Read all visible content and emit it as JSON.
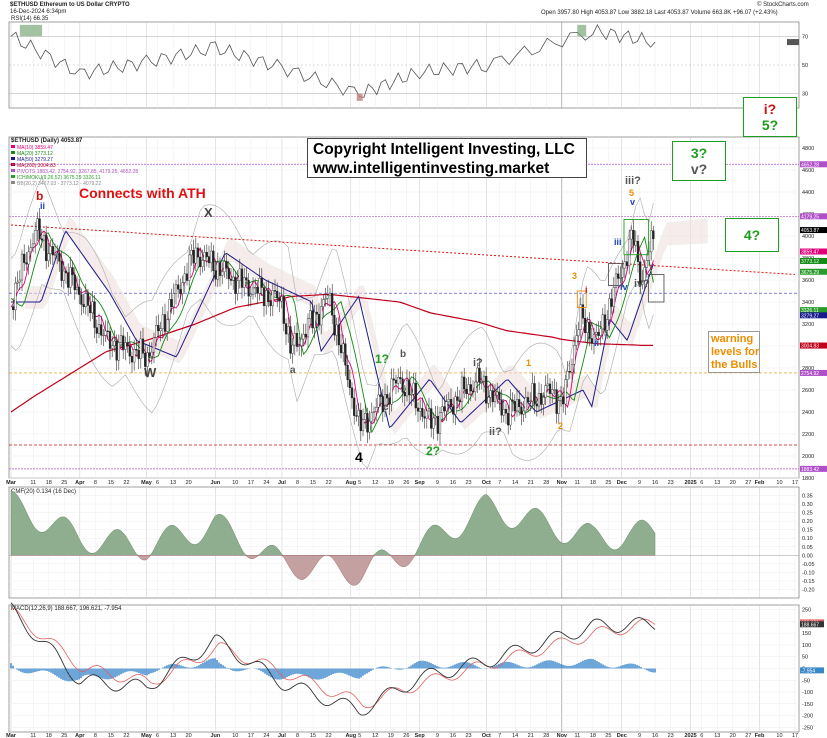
{
  "header": {
    "symbol_line": "$ETHUSD Ethereum to US Dollar CRYPTO",
    "date_line": "16-Dec-2024 6:34pm",
    "ohlc": {
      "open_label": "Open",
      "open": "3957.80",
      "high_label": "High",
      "high": "4053.87",
      "low_label": "Low",
      "low": "3882.18",
      "last_label": "Last",
      "last": "4053.87",
      "volume_label": "Volume",
      "volume": "663.8K",
      "change": "+96.07 (+2.43%)"
    },
    "credit": "© StockCharts.com"
  },
  "copyright": {
    "line1": "Copyright Intelligent Investing, LLC",
    "line2": "www.intelligentinvesting.market"
  },
  "panels": {
    "rsi_label": "RSI(14) 66.35",
    "price_label": "$ETHUSD (Daily) 4053.87",
    "legend": [
      {
        "text": "MA(10) 3859.47",
        "color": "#e0007a"
      },
      {
        "text": "MA(20) 3773.12",
        "color": "#138a13"
      },
      {
        "text": "MA(50) 3279.27",
        "color": "#1a1a8c"
      },
      {
        "text": "MA(200) 3004.83",
        "color": "#c0001a"
      },
      {
        "text": "PIVOTS 1883.42, 2754.92, 3267.85, 4179.25, 4652.28",
        "color": "#b050c8"
      },
      {
        "text": "ICHIMOKU(9,26,52) 3675.29 3326.11",
        "color": "#2a9a2a"
      },
      {
        "text": "BB(20,2) 3467.03 - 3773.12 - 4079.22",
        "color": "#888888"
      }
    ],
    "cmf_label": "CMF(20) 0.134 (16 Dec)",
    "macd_label": "MACD(12,26,9) 188.667, 196.621, -7.954"
  },
  "annotations": {
    "ath": "Connects with ATH",
    "warning_line1": "warning",
    "warning_line2": "levels for",
    "warning_line3": "the Bulls",
    "big_four": "4",
    "w": "W",
    "x": "X",
    "b_top": "b",
    "ii_top": "ii",
    "a1": "a",
    "b1": "b",
    "c1": "c",
    "one_q": "1?",
    "two_q": "2?",
    "i_q": "i?",
    "ii_q": "ii?",
    "iii_q": "iii?",
    "iv_q": "iv?",
    "v_top": "v",
    "five_top": "5",
    "one": "1",
    "two": "2",
    "three": "3",
    "iii": "iii",
    "iv": "iv",
    "v": "v",
    "i": "i",
    "ii": "ii"
  },
  "target_boxes": [
    {
      "l1": "i?",
      "l2": "5?",
      "c1": "#d01010",
      "c2": "#1e9e1e"
    },
    {
      "l1": "3?",
      "l2": "v?",
      "c1": "#1e9e1e",
      "c2": "#555555"
    },
    {
      "l1": "4?",
      "l2": "",
      "c1": "#1e9e1e",
      "c2": "#1e9e1e"
    }
  ],
  "axis": {
    "x_ticks": [
      "Mar",
      "11",
      "18",
      "25",
      "Apr",
      "8",
      "15",
      "22",
      "May",
      "6",
      "13",
      "20",
      "Jun",
      "10",
      "17",
      "24",
      "Jul",
      "8",
      "15",
      "22",
      "Aug",
      "5",
      "12",
      "19",
      "26",
      "Sep",
      "9",
      "16",
      "23",
      "Oct",
      "7",
      "14",
      "21",
      "28",
      "Nov",
      "11",
      "18",
      "25",
      "Dec",
      "9",
      "16",
      "23",
      "2025",
      "6",
      "13",
      "20",
      "27",
      "Feb",
      "10",
      "17"
    ],
    "price_ticks": [
      "4800",
      "4600",
      "4400",
      "4200",
      "4000",
      "3800",
      "3600",
      "3400",
      "3200",
      "3000",
      "2800",
      "2600",
      "2400",
      "2200",
      "2000",
      "1800"
    ],
    "rsi_ticks": [
      "70",
      "50",
      "30"
    ],
    "cmf_ticks": [
      "0.35",
      "0.30",
      "0.25",
      "0.20",
      "0.15",
      "0.10",
      "0.05",
      "0.00",
      "-0.05",
      "-0.10",
      "-0.15",
      "-0.20"
    ],
    "macd_ticks": [
      "250",
      "200",
      "150",
      "100",
      "50",
      "0",
      "-50",
      "-100",
      "-150",
      "-200",
      "-250"
    ],
    "price_tags": [
      {
        "text": "4652.28",
        "color": "#b050c8",
        "y": 4652
      },
      {
        "text": "4179.25",
        "color": "#b050c8",
        "y": 4179
      },
      {
        "text": "4053.87",
        "color": "#000000",
        "y": 4054
      },
      {
        "text": "3859.47",
        "color": "#e0007a",
        "y": 3859
      },
      {
        "text": "3773.12",
        "color": "#138a13",
        "y": 3773
      },
      {
        "text": "3675.29",
        "color": "#2a9a2a",
        "y": 3675
      },
      {
        "text": "3326.11",
        "color": "#2a9a2a",
        "y": 3326
      },
      {
        "text": "3279.27",
        "color": "#1a1a8c",
        "y": 3279
      },
      {
        "text": "3004.83",
        "color": "#c0001a",
        "y": 3004
      },
      {
        "text": "2754.92",
        "color": "#b050c8",
        "y": 2755
      },
      {
        "text": "1883.42",
        "color": "#b050c8",
        "y": 1883
      }
    ],
    "macd_tags": [
      {
        "text": "196.621",
        "color": "#e06060",
        "y": 196
      },
      {
        "text": "188.667",
        "color": "#333333",
        "y": 188
      },
      {
        "text": "-7.954",
        "color": "#3a88c8",
        "y": -8
      }
    ]
  },
  "chart_data": [
    {
      "type": "line",
      "title": "RSI(14)",
      "x": [
        "Mar",
        "Apr",
        "May",
        "Jun",
        "Jul",
        "Aug",
        "Sep",
        "Oct",
        "Nov",
        "Dec"
      ],
      "series": [
        {
          "name": "RSI(14)",
          "values": [
            70,
            44,
            52,
            62,
            48,
            30,
            45,
            50,
            74,
            66
          ]
        }
      ],
      "ylim": [
        20,
        80
      ]
    },
    {
      "type": "line",
      "title": "$ETHUSD (Daily)",
      "ylabel": "",
      "ylim": [
        1800,
        4900
      ],
      "x_dates": [
        "2024-03-01",
        "2024-03-12",
        "2024-04-01",
        "2024-04-13",
        "2024-05-01",
        "2024-05-23",
        "2024-06-10",
        "2024-07-01",
        "2024-07-05",
        "2024-07-22",
        "2024-08-05",
        "2024-08-23",
        "2024-09-06",
        "2024-09-27",
        "2024-10-10",
        "2024-10-31",
        "2024-11-04",
        "2024-11-12",
        "2024-11-20",
        "2024-12-06",
        "2024-12-10",
        "2024-12-16"
      ],
      "series": [
        {
          "name": "$ETHUSD",
          "values": [
            3400,
            4050,
            3480,
            3050,
            2900,
            3850,
            3600,
            3400,
            2950,
            3450,
            2250,
            2700,
            2300,
            2700,
            2400,
            2600,
            2450,
            3250,
            3050,
            4000,
            3600,
            4054
          ]
        },
        {
          "name": "MA(200)",
          "values": [
            2400,
            2550,
            2800,
            2950,
            3050,
            3200,
            3350,
            3430,
            3450,
            3470,
            3440,
            3400,
            3300,
            3220,
            3140,
            3080,
            3060,
            3040,
            3020,
            3010,
            3005,
            3005
          ]
        }
      ],
      "lines": [
        {
          "name": "ATH trendline",
          "from": [
            "2024-03-01",
            4100
          ],
          "to": [
            "2025-02-17",
            3650
          ]
        },
        {
          "name": "warning level 1",
          "y": 3480
        },
        {
          "name": "warning level 2",
          "y": 2750
        },
        {
          "name": "low",
          "y": 2100
        }
      ]
    },
    {
      "type": "area",
      "title": "CMF(20)",
      "x": [
        "Mar",
        "Apr",
        "May",
        "Jun",
        "Jul",
        "Aug",
        "Sep",
        "Oct",
        "Nov",
        "Dec"
      ],
      "series": [
        {
          "name": "CMF(20)",
          "values": [
            0.3,
            0.1,
            0.05,
            0.18,
            -0.05,
            -0.1,
            0.05,
            0.28,
            0.1,
            0.134
          ]
        }
      ],
      "ylim": [
        -0.25,
        0.4
      ]
    },
    {
      "type": "line",
      "title": "MACD(12,26,9)",
      "x": [
        "Mar",
        "Apr",
        "May",
        "Jun",
        "Jul",
        "Aug",
        "Sep",
        "Oct",
        "Nov",
        "Dec"
      ],
      "series": [
        {
          "name": "MACD",
          "values": [
            250,
            -50,
            -80,
            120,
            -60,
            -180,
            -40,
            30,
            180,
            188.667
          ]
        },
        {
          "name": "Signal",
          "values": [
            230,
            0,
            -60,
            90,
            -20,
            -150,
            -60,
            20,
            150,
            196.621
          ]
        },
        {
          "name": "Histogram",
          "values": [
            20,
            -50,
            -20,
            30,
            -40,
            -30,
            20,
            10,
            30,
            -7.954
          ]
        }
      ],
      "ylim": [
        -250,
        250
      ]
    }
  ]
}
